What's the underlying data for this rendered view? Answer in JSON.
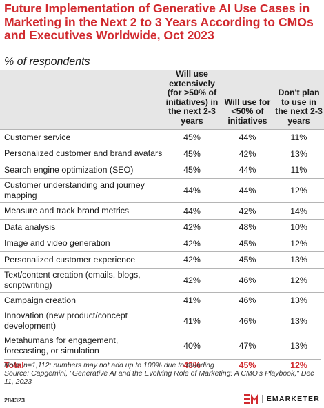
{
  "title": "Future Implementation of Generative AI Use Cases in Marketing in the Next 2 to 3 Years According to CMOs and Executives Worldwide, Oct 2023",
  "subtitle": "% of respondents",
  "chart_data": {
    "type": "table",
    "columns": [
      "Will use extensively (for >50% of initiatives) in the next 2-3 years",
      "Will use for <50% of initiatives",
      "Don't plan to use in the next 2-3 years"
    ],
    "rows": [
      {
        "label": "Customer service",
        "values": [
          "45%",
          "44%",
          "11%"
        ]
      },
      {
        "label": "Personalized customer and brand avatars",
        "values": [
          "45%",
          "42%",
          "13%"
        ]
      },
      {
        "label": "Search engine optimization (SEO)",
        "values": [
          "45%",
          "44%",
          "11%"
        ]
      },
      {
        "label": "Customer understanding and journey mapping",
        "values": [
          "44%",
          "44%",
          "12%"
        ]
      },
      {
        "label": "Measure and track brand metrics",
        "values": [
          "44%",
          "42%",
          "14%"
        ]
      },
      {
        "label": "Data analysis",
        "values": [
          "42%",
          "48%",
          "10%"
        ]
      },
      {
        "label": "Image and video generation",
        "values": [
          "42%",
          "45%",
          "12%"
        ]
      },
      {
        "label": "Personalized customer experience",
        "values": [
          "42%",
          "45%",
          "13%"
        ]
      },
      {
        "label": "Text/content creation (emails, blogs, scriptwriting)",
        "values": [
          "42%",
          "46%",
          "12%"
        ]
      },
      {
        "label": "Campaign creation",
        "values": [
          "41%",
          "46%",
          "13%"
        ]
      },
      {
        "label": "Innovation (new product/concept development)",
        "values": [
          "41%",
          "46%",
          "13%"
        ]
      },
      {
        "label": "Metahumans for engagement, forecasting, or simulation",
        "values": [
          "40%",
          "47%",
          "13%"
        ]
      }
    ],
    "total": {
      "label": "Total",
      "values": [
        "43%",
        "45%",
        "12%"
      ]
    }
  },
  "note": "Note: n=1,112; numbers may not add up to 100% due to rounding",
  "source": "Source: Capgemini, \"Generative AI and the Evolving Role of Marketing: A CMO's Playbook,\" Dec 11, 2023",
  "chart_id": "284323",
  "brand": {
    "name": "EMARKETER",
    "color": "#d12a2f"
  }
}
